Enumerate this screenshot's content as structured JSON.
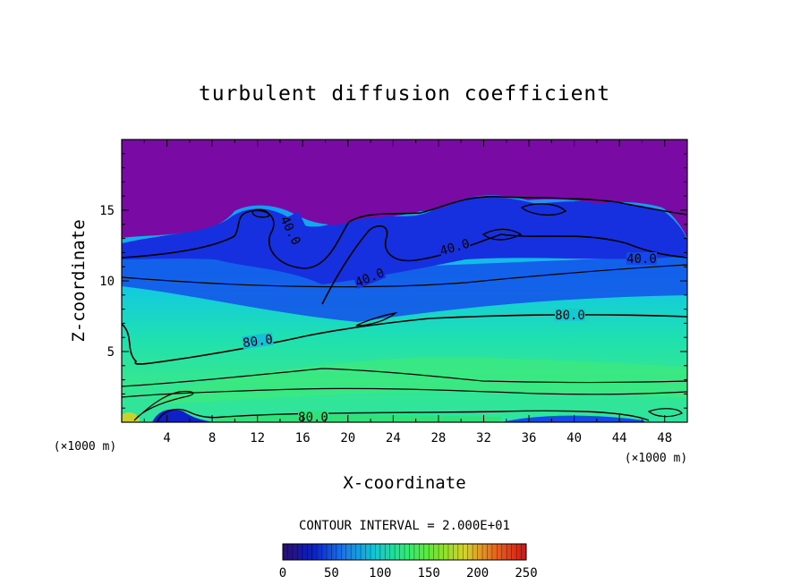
{
  "chart_data": {
    "type": "heatmap",
    "title": "turbulent diffusion coefficient",
    "xlabel": "X-coordinate",
    "ylabel": "Z-coordinate",
    "x_unit": "(×1000 m)",
    "xlim": [
      0,
      50
    ],
    "ylim": [
      0,
      20
    ],
    "x_ticks": [
      4,
      8,
      12,
      16,
      20,
      24,
      28,
      32,
      36,
      40,
      44,
      48
    ],
    "y_ticks": [
      5,
      10,
      15
    ],
    "contour_interval_text": "CONTOUR INTERVAL = 2.000E+01",
    "contour_labels": [
      "40.0",
      "40.0",
      "40.0",
      "40.0",
      "80.0",
      "80.0",
      "80.0"
    ],
    "colorbar": {
      "min": 0,
      "max": 250,
      "ticks": [
        0,
        50,
        100,
        150,
        200,
        250
      ],
      "colormap": [
        "#2a0e6e",
        "#0a1fc8",
        "#1a78ea",
        "#10c6d6",
        "#2cea7a",
        "#70e82a",
        "#d8d028",
        "#e8641c",
        "#d0141a"
      ]
    },
    "field_colors": {
      "upper_layer": "#7a0aa4",
      "mid_blue": "#1450ea",
      "light_blue": "#14a8f0",
      "cyan": "#12e0c8",
      "green": "#30e68e"
    }
  }
}
